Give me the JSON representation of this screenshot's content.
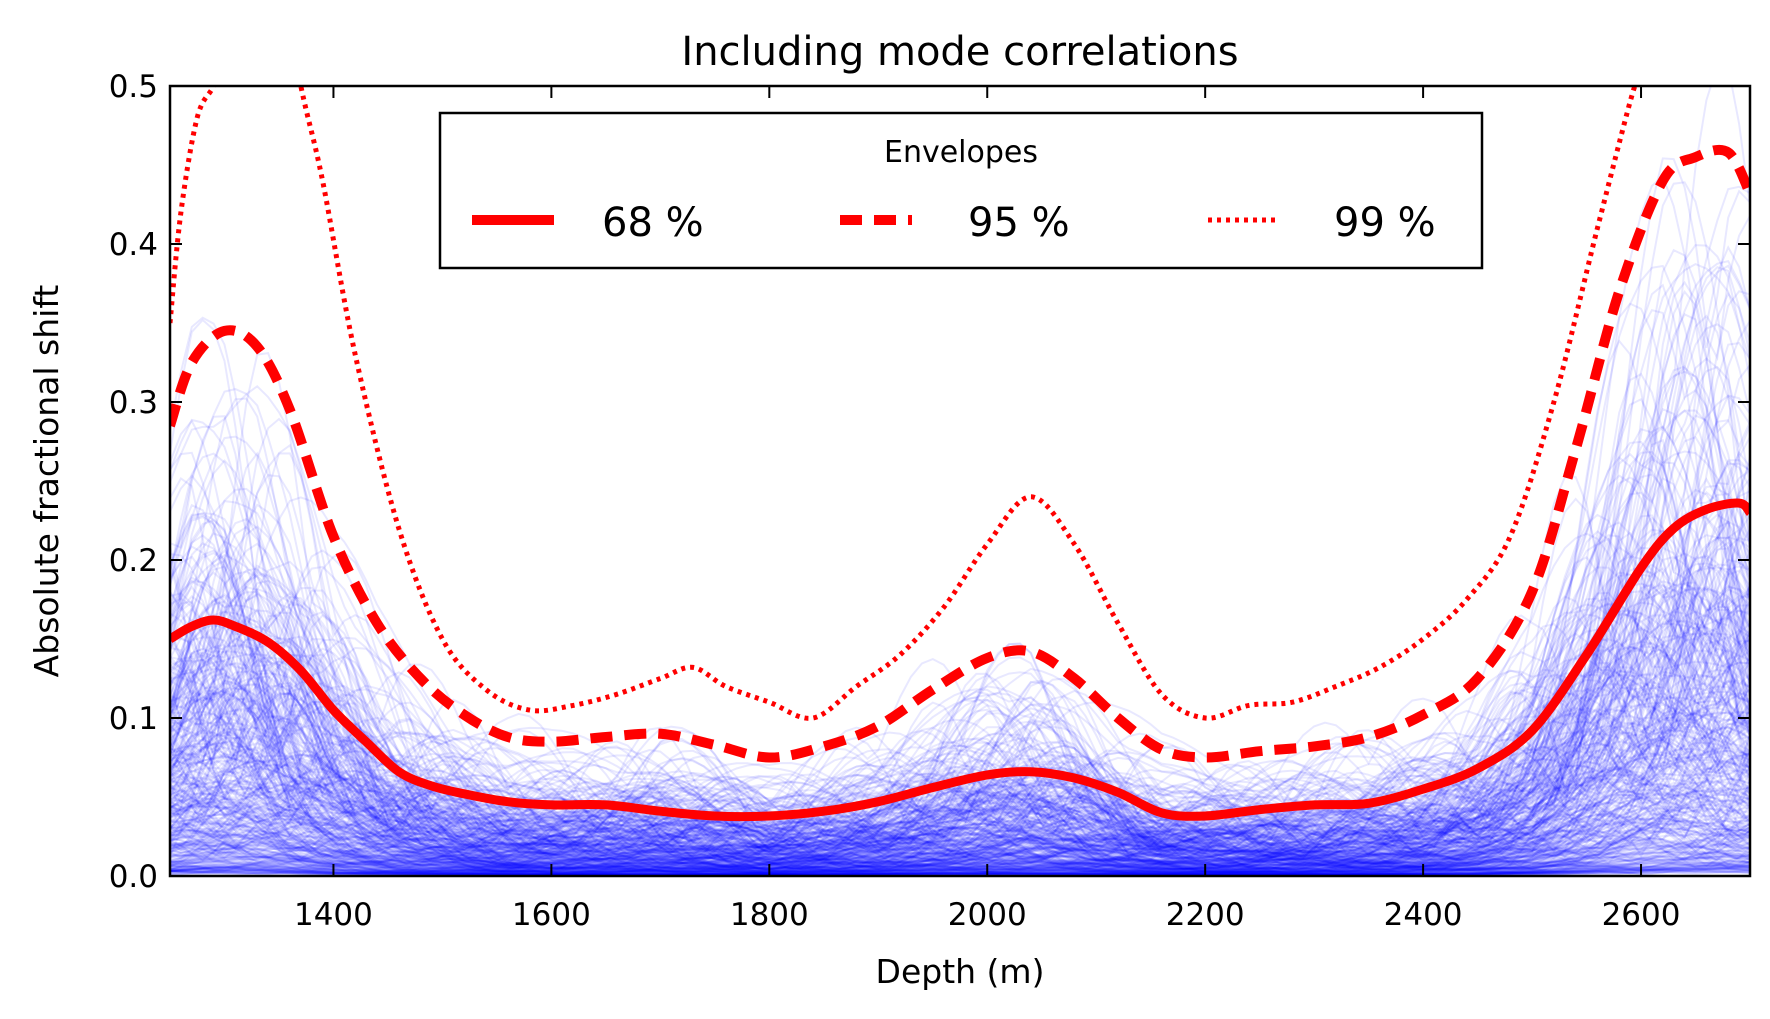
{
  "chart_data": {
    "type": "line",
    "title": "Including mode correlations",
    "xlabel": "Depth (m)",
    "ylabel": "Absolute fractional shift",
    "xlim": [
      1250,
      2700
    ],
    "ylim": [
      0.0,
      0.5
    ],
    "xticks": [
      1400,
      1600,
      1800,
      2000,
      2200,
      2400,
      2600
    ],
    "xtick_labels": [
      "1400",
      "1600",
      "1800",
      "2000",
      "2200",
      "2400",
      "2600"
    ],
    "yticks": [
      0.0,
      0.1,
      0.2,
      0.3,
      0.4,
      0.5
    ],
    "ytick_labels": [
      "0.0",
      "0.1",
      "0.2",
      "0.3",
      "0.4",
      "0.5"
    ],
    "grid": false,
    "legend": {
      "title": "Envelopes",
      "position": "top-center",
      "entries": [
        "68 %",
        "95 %",
        "99 %"
      ]
    },
    "background_samples": {
      "color": "#0000ff",
      "description_count": 400
    },
    "series": [
      {
        "name": "68 %",
        "color": "#ff0000",
        "style": "solid",
        "x": [
          1250,
          1270,
          1290,
          1310,
          1340,
          1370,
          1400,
          1430,
          1460,
          1490,
          1520,
          1560,
          1600,
          1650,
          1700,
          1750,
          1800,
          1850,
          1900,
          1950,
          2000,
          2040,
          2080,
          2120,
          2160,
          2200,
          2250,
          2300,
          2350,
          2400,
          2450,
          2500,
          2550,
          2600,
          2630,
          2660,
          2690,
          2700
        ],
        "values": [
          0.15,
          0.158,
          0.162,
          0.158,
          0.148,
          0.13,
          0.105,
          0.085,
          0.066,
          0.057,
          0.052,
          0.047,
          0.045,
          0.045,
          0.041,
          0.038,
          0.038,
          0.041,
          0.047,
          0.056,
          0.064,
          0.066,
          0.062,
          0.053,
          0.04,
          0.038,
          0.042,
          0.045,
          0.046,
          0.055,
          0.068,
          0.092,
          0.14,
          0.195,
          0.22,
          0.232,
          0.236,
          0.23
        ]
      },
      {
        "name": "95 %",
        "color": "#ff0000",
        "style": "dashed",
        "x": [
          1250,
          1270,
          1300,
          1330,
          1360,
          1400,
          1440,
          1480,
          1520,
          1560,
          1600,
          1650,
          1700,
          1750,
          1800,
          1850,
          1900,
          1950,
          2000,
          2040,
          2080,
          2120,
          2160,
          2200,
          2250,
          2300,
          2350,
          2400,
          2450,
          2500,
          2540,
          2580,
          2620,
          2650,
          2680,
          2700
        ],
        "values": [
          0.285,
          0.325,
          0.345,
          0.335,
          0.295,
          0.215,
          0.16,
          0.125,
          0.102,
          0.088,
          0.085,
          0.088,
          0.09,
          0.083,
          0.075,
          0.082,
          0.095,
          0.118,
          0.138,
          0.142,
          0.125,
          0.1,
          0.08,
          0.075,
          0.079,
          0.082,
          0.088,
          0.102,
          0.125,
          0.18,
          0.27,
          0.37,
          0.44,
          0.455,
          0.458,
          0.432
        ]
      },
      {
        "name": "99 %",
        "color": "#ff0000",
        "style": "dotted",
        "x": [
          1250,
          1260,
          1275,
          1290,
          1300,
          1340,
          1370,
          1390,
          1420,
          1460,
          1500,
          1540,
          1580,
          1620,
          1660,
          1700,
          1730,
          1760,
          1800,
          1840,
          1880,
          1920,
          1960,
          2000,
          2040,
          2080,
          2120,
          2160,
          2200,
          2240,
          2280,
          2320,
          2360,
          2400,
          2440,
          2480,
          2520,
          2560,
          2590,
          2600
        ],
        "values": [
          0.35,
          0.42,
          0.48,
          0.5,
          0.52,
          0.6,
          0.5,
          0.44,
          0.33,
          0.22,
          0.15,
          0.118,
          0.105,
          0.108,
          0.115,
          0.125,
          0.132,
          0.12,
          0.11,
          0.1,
          0.12,
          0.14,
          0.17,
          0.21,
          0.24,
          0.21,
          0.16,
          0.115,
          0.1,
          0.108,
          0.11,
          0.12,
          0.132,
          0.15,
          0.175,
          0.215,
          0.3,
          0.41,
          0.49,
          0.51
        ]
      }
    ]
  }
}
